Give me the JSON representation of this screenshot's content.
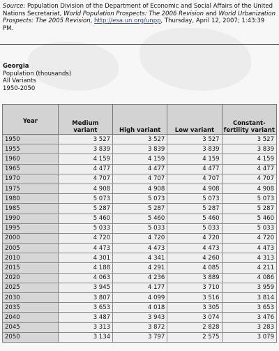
{
  "source": {
    "label": "Source",
    "text1": ": Population Division of the Department of Economic and Social Affairs of the United Nations Secretariat, ",
    "wpp": "World Population Prospects: The 2006 Revision",
    "and": " and ",
    "wup": "World Urbanization Prospects: The 2005 Revision",
    "sep": ", ",
    "url": "http://esa.un.org/unpp",
    "date": ", Thursday, April 12, 2007; 1:43:39 PM."
  },
  "meta": {
    "country": "Georgia",
    "indicator": "Population (thousands)",
    "variants": "All Variants",
    "period": "1950-2050"
  },
  "table": {
    "headers": {
      "year": "Year",
      "medium": "Medium variant",
      "high": "High variant",
      "low": "Low variant",
      "constant": "Constant-fertility variant"
    },
    "rows": [
      {
        "year": "1950",
        "medium": "3 527",
        "high": "3 527",
        "low": "3 527",
        "constant": "3 527"
      },
      {
        "year": "1955",
        "medium": "3 839",
        "high": "3 839",
        "low": "3 839",
        "constant": "3 839"
      },
      {
        "year": "1960",
        "medium": "4 159",
        "high": "4 159",
        "low": "4 159",
        "constant": "4 159"
      },
      {
        "year": "1965",
        "medium": "4 477",
        "high": "4 477",
        "low": "4 477",
        "constant": "4 477"
      },
      {
        "year": "1970",
        "medium": "4 707",
        "high": "4 707",
        "low": "4 707",
        "constant": "4 707"
      },
      {
        "year": "1975",
        "medium": "4 908",
        "high": "4 908",
        "low": "4 908",
        "constant": "4 908"
      },
      {
        "year": "1980",
        "medium": "5 073",
        "high": "5 073",
        "low": "5 073",
        "constant": "5 073"
      },
      {
        "year": "1985",
        "medium": "5 287",
        "high": "5 287",
        "low": "5 287",
        "constant": "5 287"
      },
      {
        "year": "1990",
        "medium": "5 460",
        "high": "5 460",
        "low": "5 460",
        "constant": "5 460"
      },
      {
        "year": "1995",
        "medium": "5 033",
        "high": "5 033",
        "low": "5 033",
        "constant": "5 033"
      },
      {
        "year": "2000",
        "medium": "4 720",
        "high": "4 720",
        "low": "4 720",
        "constant": "4 720"
      },
      {
        "year": "2005",
        "medium": "4 473",
        "high": "4 473",
        "low": "4 473",
        "constant": "4 473"
      },
      {
        "year": "2010",
        "medium": "4 301",
        "high": "4 341",
        "low": "4 260",
        "constant": "4 313"
      },
      {
        "year": "2015",
        "medium": "4 188",
        "high": "4 291",
        "low": "4 085",
        "constant": "4 211"
      },
      {
        "year": "2020",
        "medium": "4 063",
        "high": "4 236",
        "low": "3 889",
        "constant": "4 086"
      },
      {
        "year": "2025",
        "medium": "3 945",
        "high": "4 177",
        "low": "3 710",
        "constant": "3 959"
      },
      {
        "year": "2030",
        "medium": "3 807",
        "high": "4 099",
        "low": "3 516",
        "constant": "3 814"
      },
      {
        "year": "2035",
        "medium": "3 653",
        "high": "4 018",
        "low": "3 305",
        "constant": "3 653"
      },
      {
        "year": "2040",
        "medium": "3 487",
        "high": "3 943",
        "low": "3 074",
        "constant": "3 476"
      },
      {
        "year": "2045",
        "medium": "3 313",
        "high": "3 872",
        "low": "2 828",
        "constant": "3 283"
      },
      {
        "year": "2050",
        "medium": "3 134",
        "high": "3 797",
        "low": "2 575",
        "constant": "3 079"
      }
    ]
  }
}
